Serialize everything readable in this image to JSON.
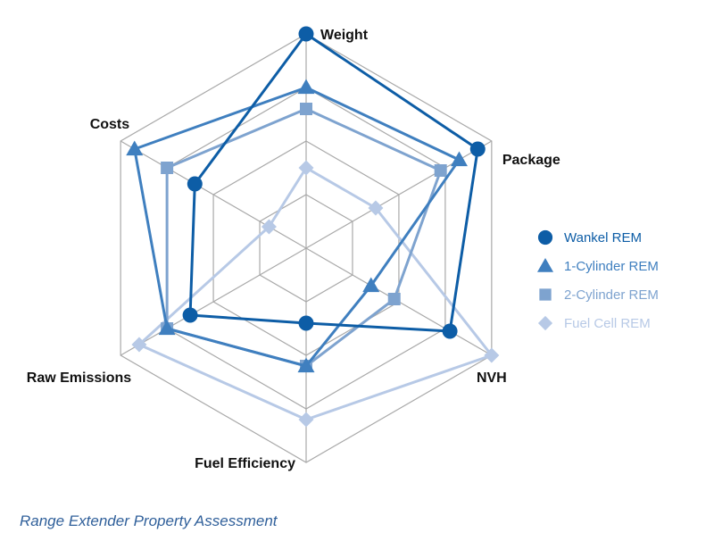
{
  "chart_data": {
    "type": "radar",
    "axes": [
      "Weight",
      "Package",
      "NVH",
      "Fuel Efficiency",
      "Raw Emissions",
      "Costs"
    ],
    "rmax": 4,
    "grid_levels": 4,
    "grid": true,
    "legend_position": "right",
    "series": [
      {
        "name": "Wankel REM",
        "marker": "circle",
        "color": "#0d5da6",
        "values": [
          4.0,
          3.7,
          3.1,
          1.4,
          2.5,
          2.4
        ]
      },
      {
        "name": "1-Cylinder REM",
        "marker": "triangle",
        "color": "#3f7fbf",
        "values": [
          3.0,
          3.3,
          1.4,
          2.2,
          3.0,
          3.7
        ]
      },
      {
        "name": "2-Cylinder REM",
        "marker": "square",
        "color": "#7ea3cf",
        "values": [
          2.6,
          2.9,
          1.9,
          2.2,
          3.0,
          3.0
        ]
      },
      {
        "name": "Fuel Cell REM",
        "marker": "diamond",
        "color": "#b7c9e6",
        "values": [
          1.5,
          1.5,
          4.0,
          3.2,
          3.6,
          0.8
        ]
      }
    ]
  },
  "caption": "Range Extender Property Assessment"
}
